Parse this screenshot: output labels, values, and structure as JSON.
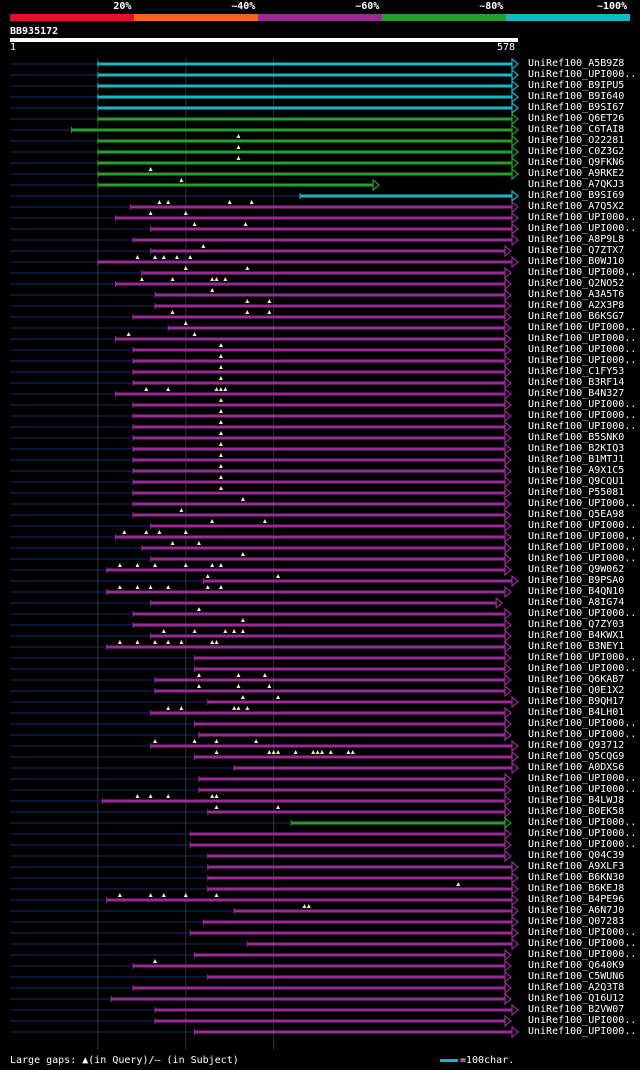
{
  "colors": {
    "c1": "#e0102c",
    "c2": "#e86b1a",
    "c3": "#9a2a98",
    "c4": "#25a02a",
    "c5": "#19b6c6",
    "gap": "#f4f0a8",
    "thin": "#1a2a6c"
  },
  "legend": {
    "segments": [
      {
        "label": "20%",
        "color": "#e0102c"
      },
      {
        "label": "~40%",
        "color": "#e86b1a"
      },
      {
        "label": "~60%",
        "color": "#9a2a98"
      },
      {
        "label": "~80%",
        "color": "#25a02a"
      },
      {
        "label": "~100%",
        "color": "#19b6c6"
      }
    ]
  },
  "query": {
    "name": "BB935172",
    "start": "1",
    "end": "578",
    "length": 578
  },
  "footer": {
    "gaps": "Large gaps: ▲(in Query)/– (in Subject)",
    "scale": "=100char."
  },
  "hits": [
    {
      "label": "UniRef100_A5B9Z8",
      "s": 100,
      "e": 578,
      "c": "c5",
      "g": []
    },
    {
      "label": "UniRef100_UPI000..",
      "s": 100,
      "e": 578,
      "c": "c5",
      "g": []
    },
    {
      "label": "UniRef100_B9IPU5",
      "s": 100,
      "e": 578,
      "c": "c5",
      "g": []
    },
    {
      "label": "UniRef100_B9I640",
      "s": 100,
      "e": 578,
      "c": "c5",
      "g": []
    },
    {
      "label": "UniRef100_B9SI67",
      "s": 100,
      "e": 578,
      "c": "c5",
      "g": []
    },
    {
      "label": "UniRef100_Q6ET26",
      "s": 100,
      "e": 578,
      "c": "c4",
      "g": []
    },
    {
      "label": "UniRef100_C6TAI8",
      "s": 70,
      "e": 578,
      "c": "c4",
      "g": []
    },
    {
      "label": "UniRef100_O22281",
      "s": 100,
      "e": 578,
      "c": "c4",
      "g": [
        260
      ]
    },
    {
      "label": "UniRef100_C0Z3G2",
      "s": 100,
      "e": 578,
      "c": "c4",
      "g": [
        260
      ]
    },
    {
      "label": "UniRef100_Q9FKN6",
      "s": 100,
      "e": 578,
      "c": "c4",
      "g": [
        260
      ]
    },
    {
      "label": "UniRef100_A9RKE2",
      "s": 100,
      "e": 578,
      "c": "c4",
      "g": [
        160
      ]
    },
    {
      "label": "UniRef100_A7QKJ3",
      "s": 100,
      "e": 420,
      "c": "c4",
      "g": [
        195
      ]
    },
    {
      "label": "UniRef100_B9SI69",
      "s": 330,
      "e": 578,
      "c": "c5",
      "g": []
    },
    {
      "label": "UniRef100_A7Q5X2",
      "s": 137,
      "e": 578,
      "c": "c3",
      "g": [
        170,
        180,
        250,
        275
      ]
    },
    {
      "label": "UniRef100_UPI000..",
      "s": 120,
      "e": 578,
      "c": "c3",
      "g": [
        160,
        200
      ]
    },
    {
      "label": "UniRef100_UPI000..",
      "s": 160,
      "e": 578,
      "c": "c3",
      "g": [
        210,
        268
      ]
    },
    {
      "label": "UniRef100_A8P9L8",
      "s": 140,
      "e": 578,
      "c": "c3",
      "g": []
    },
    {
      "label": "UniRef100_Q7ZTX7",
      "s": 160,
      "e": 570,
      "c": "c3",
      "g": [
        220
      ]
    },
    {
      "label": "UniRef100_B0WJ10",
      "s": 100,
      "e": 578,
      "c": "c3",
      "g": [
        145,
        165,
        175,
        190,
        205
      ]
    },
    {
      "label": "UniRef100_UPI000..",
      "s": 150,
      "e": 570,
      "c": "c3",
      "g": [
        200,
        270
      ]
    },
    {
      "label": "UniRef100_Q2NO52",
      "s": 120,
      "e": 570,
      "c": "c3",
      "g": [
        150,
        185,
        230,
        235,
        245
      ]
    },
    {
      "label": "UniRef100_A3A5T6",
      "s": 165,
      "e": 570,
      "c": "c3",
      "g": [
        230
      ]
    },
    {
      "label": "UniRef100_A2X3P8",
      "s": 165,
      "e": 570,
      "c": "c3",
      "g": [
        270,
        295
      ]
    },
    {
      "label": "UniRef100_B6KSG7",
      "s": 140,
      "e": 570,
      "c": "c3",
      "g": [
        185,
        270,
        295
      ]
    },
    {
      "label": "UniRef100_UPI000..",
      "s": 180,
      "e": 570,
      "c": "c3",
      "g": [
        200
      ]
    },
    {
      "label": "UniRef100_UPI000..",
      "s": 120,
      "e": 570,
      "c": "c3",
      "g": [
        135,
        210
      ]
    },
    {
      "label": "UniRef100_UPI000..",
      "s": 140,
      "e": 570,
      "c": "c3",
      "g": [
        240
      ]
    },
    {
      "label": "UniRef100_UPI000..",
      "s": 140,
      "e": 570,
      "c": "c3",
      "g": [
        240
      ]
    },
    {
      "label": "UniRef100_C1FY53",
      "s": 140,
      "e": 570,
      "c": "c3",
      "g": [
        240
      ]
    },
    {
      "label": "UniRef100_B3RF14",
      "s": 140,
      "e": 570,
      "c": "c3",
      "g": [
        240
      ]
    },
    {
      "label": "UniRef100_B4N327",
      "s": 120,
      "e": 570,
      "c": "c3",
      "g": [
        155,
        180,
        235,
        240,
        245
      ]
    },
    {
      "label": "UniRef100_UPI000..",
      "s": 140,
      "e": 570,
      "c": "c3",
      "g": [
        240
      ]
    },
    {
      "label": "UniRef100_UPI000..",
      "s": 140,
      "e": 570,
      "c": "c3",
      "g": [
        240
      ]
    },
    {
      "label": "UniRef100_UPI000..",
      "s": 140,
      "e": 570,
      "c": "c3",
      "g": [
        240
      ]
    },
    {
      "label": "UniRef100_B5SNK0",
      "s": 140,
      "e": 570,
      "c": "c3",
      "g": [
        240
      ]
    },
    {
      "label": "UniRef100_B2KIQ3",
      "s": 140,
      "e": 570,
      "c": "c3",
      "g": [
        240
      ]
    },
    {
      "label": "UniRef100_B1MTJ1",
      "s": 140,
      "e": 570,
      "c": "c3",
      "g": [
        240
      ]
    },
    {
      "label": "UniRef100_A9X1C5",
      "s": 140,
      "e": 570,
      "c": "c3",
      "g": [
        240
      ]
    },
    {
      "label": "UniRef100_Q9CQU1",
      "s": 140,
      "e": 570,
      "c": "c3",
      "g": [
        240
      ]
    },
    {
      "label": "UniRef100_P55081",
      "s": 140,
      "e": 570,
      "c": "c3",
      "g": [
        240
      ]
    },
    {
      "label": "UniRef100_UPI000..",
      "s": 140,
      "e": 570,
      "c": "c3",
      "g": [
        265
      ]
    },
    {
      "label": "UniRef100_Q5EA98",
      "s": 140,
      "e": 570,
      "c": "c3",
      "g": [
        195
      ]
    },
    {
      "label": "UniRef100_UPI000..",
      "s": 160,
      "e": 570,
      "c": "c3",
      "g": [
        230,
        290
      ]
    },
    {
      "label": "UniRef100_UPI000..",
      "s": 120,
      "e": 570,
      "c": "c3",
      "g": [
        130,
        155,
        170,
        200
      ]
    },
    {
      "label": "UniRef100_UPI000..",
      "s": 150,
      "e": 570,
      "c": "c3",
      "g": [
        185,
        215
      ]
    },
    {
      "label": "UniRef100_UPI000..",
      "s": 160,
      "e": 570,
      "c": "c3",
      "g": [
        265
      ]
    },
    {
      "label": "UniRef100_Q9W062",
      "s": 110,
      "e": 570,
      "c": "c3",
      "g": [
        125,
        145,
        165,
        200,
        230,
        240
      ]
    },
    {
      "label": "UniRef100_B9PSA0",
      "s": 220,
      "e": 578,
      "c": "c3",
      "g": [
        225,
        305
      ]
    },
    {
      "label": "UniRef100_B4QN10",
      "s": 110,
      "e": 570,
      "c": "c3",
      "g": [
        125,
        145,
        160,
        180,
        225,
        240
      ]
    },
    {
      "label": "UniRef100_A8IG74",
      "s": 160,
      "e": 560,
      "c": "c3",
      "g": []
    },
    {
      "label": "UniRef100_UPI000..",
      "s": 140,
      "e": 570,
      "c": "c3",
      "g": [
        215
      ]
    },
    {
      "label": "UniRef100_Q7ZY03",
      "s": 140,
      "e": 570,
      "c": "c3",
      "g": [
        265
      ]
    },
    {
      "label": "UniRef100_B4KWX1",
      "s": 160,
      "e": 570,
      "c": "c3",
      "g": [
        175,
        210,
        245,
        255,
        265
      ]
    },
    {
      "label": "UniRef100_B3NEY1",
      "s": 110,
      "e": 570,
      "c": "c3",
      "g": [
        125,
        145,
        165,
        180,
        195,
        230,
        235
      ]
    },
    {
      "label": "UniRef100_UPI000..",
      "s": 210,
      "e": 570,
      "c": "c3",
      "g": []
    },
    {
      "label": "UniRef100_UPI000..",
      "s": 210,
      "e": 570,
      "c": "c3",
      "g": []
    },
    {
      "label": "UniRef100_Q6KAB7",
      "s": 165,
      "e": 570,
      "c": "c3",
      "g": [
        215,
        260,
        290
      ]
    },
    {
      "label": "UniRef100_Q0E1X2",
      "s": 165,
      "e": 570,
      "c": "c3",
      "g": [
        215,
        260,
        295
      ]
    },
    {
      "label": "UniRef100_B9QH17",
      "s": 225,
      "e": 578,
      "c": "c3",
      "g": [
        265,
        305
      ]
    },
    {
      "label": "UniRef100_B4LH01",
      "s": 160,
      "e": 570,
      "c": "c3",
      "g": [
        180,
        195,
        255,
        260,
        270
      ]
    },
    {
      "label": "UniRef100_UPI000..",
      "s": 210,
      "e": 570,
      "c": "c3",
      "g": []
    },
    {
      "label": "UniRef100_UPI000..",
      "s": 215,
      "e": 570,
      "c": "c3",
      "g": []
    },
    {
      "label": "UniRef100_Q93712",
      "s": 160,
      "e": 578,
      "c": "c3",
      "g": [
        165,
        210,
        235,
        280
      ]
    },
    {
      "label": "UniRef100_Q5CQG9",
      "s": 210,
      "e": 578,
      "c": "c3",
      "g": [
        235,
        295,
        300,
        305,
        325,
        345,
        350,
        355,
        365,
        385,
        390
      ]
    },
    {
      "label": "UniRef100_A0DXS6",
      "s": 255,
      "e": 578,
      "c": "c3",
      "g": []
    },
    {
      "label": "UniRef100_UPI000..",
      "s": 215,
      "e": 570,
      "c": "c3",
      "g": []
    },
    {
      "label": "UniRef100_UPI000..",
      "s": 215,
      "e": 570,
      "c": "c3",
      "g": []
    },
    {
      "label": "UniRef100_B4LWJ8",
      "s": 105,
      "e": 570,
      "c": "c3",
      "g": [
        145,
        160,
        180,
        230,
        235
      ]
    },
    {
      "label": "UniRef100_B0EK58",
      "s": 225,
      "e": 570,
      "c": "c3",
      "g": [
        235,
        305
      ]
    },
    {
      "label": "UniRef100_UPI000..",
      "s": 320,
      "e": 570,
      "c": "c4",
      "g": []
    },
    {
      "label": "UniRef100_UPI000..",
      "s": 205,
      "e": 570,
      "c": "c3",
      "g": []
    },
    {
      "label": "UniRef100_UPI000..",
      "s": 205,
      "e": 570,
      "c": "c3",
      "g": []
    },
    {
      "label": "UniRef100_Q04C39",
      "s": 225,
      "e": 570,
      "c": "c3",
      "g": []
    },
    {
      "label": "UniRef100_A9XLF3",
      "s": 225,
      "e": 578,
      "c": "c3",
      "g": []
    },
    {
      "label": "UniRef100_B6KN30",
      "s": 225,
      "e": 578,
      "c": "c3",
      "g": []
    },
    {
      "label": "UniRef100_B6KEJ8",
      "s": 225,
      "e": 578,
      "c": "c3",
      "g": [
        510
      ]
    },
    {
      "label": "UniRef100_B4PE96",
      "s": 110,
      "e": 578,
      "c": "c3",
      "g": [
        125,
        160,
        175,
        200,
        235
      ]
    },
    {
      "label": "UniRef100_A6N7J0",
      "s": 255,
      "e": 578,
      "c": "c3",
      "g": [
        335,
        340
      ]
    },
    {
      "label": "UniRef100_Q07283",
      "s": 220,
      "e": 578,
      "c": "c3",
      "g": []
    },
    {
      "label": "UniRef100_UPI000..",
      "s": 205,
      "e": 578,
      "c": "c3",
      "g": []
    },
    {
      "label": "UniRef100_UPI000..",
      "s": 270,
      "e": 578,
      "c": "c3",
      "g": []
    },
    {
      "label": "UniRef100_UPI000..",
      "s": 210,
      "e": 570,
      "c": "c3",
      "g": []
    },
    {
      "label": "UniRef100_Q640K9",
      "s": 140,
      "e": 570,
      "c": "c3",
      "g": [
        165
      ]
    },
    {
      "label": "UniRef100_C5WUN6",
      "s": 225,
      "e": 570,
      "c": "c3",
      "g": []
    },
    {
      "label": "UniRef100_A2Q3T8",
      "s": 140,
      "e": 570,
      "c": "c3",
      "g": []
    },
    {
      "label": "UniRef100_Q16U12",
      "s": 115,
      "e": 570,
      "c": "c3",
      "g": []
    },
    {
      "label": "UniRef100_B2VW07",
      "s": 165,
      "e": 578,
      "c": "c3",
      "g": []
    },
    {
      "label": "UniRef100_UPI000..",
      "s": 165,
      "e": 570,
      "c": "c3",
      "g": []
    },
    {
      "label": "UniRef100_UPI000..",
      "s": 210,
      "e": 578,
      "c": "c3",
      "g": []
    }
  ]
}
